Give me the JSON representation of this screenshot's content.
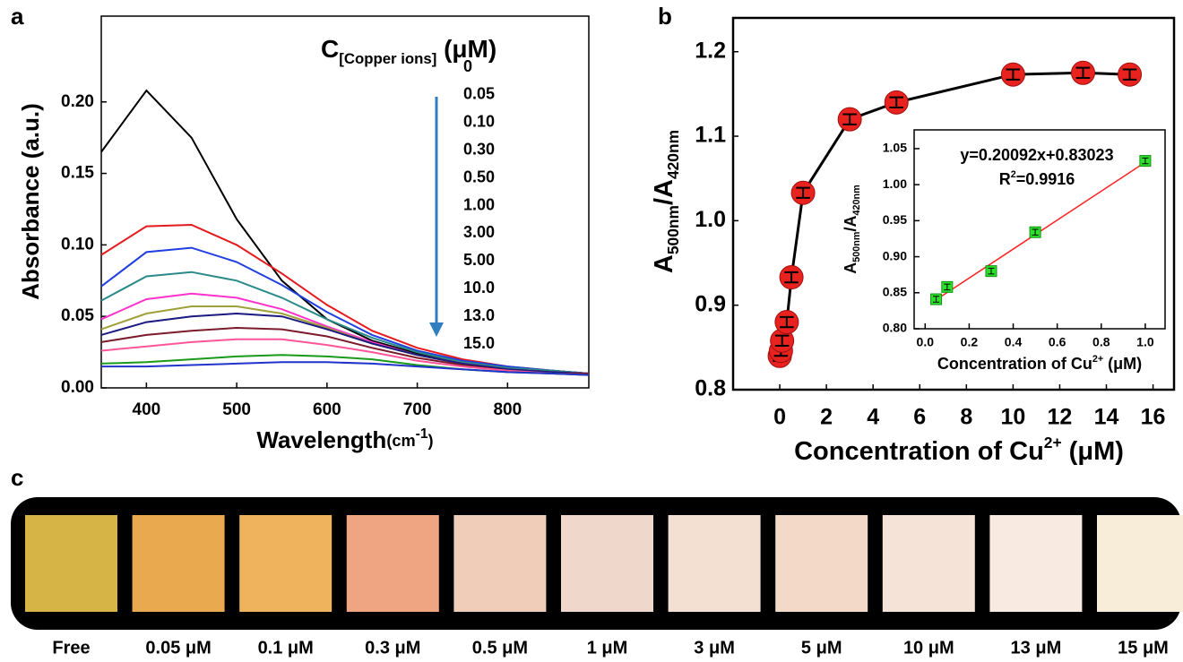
{
  "panel_labels": [
    "a",
    "b",
    "c"
  ],
  "chart_data": [
    {
      "type": "line",
      "x_label": [
        "Wavelength",
        "(cm",
        "-1",
        ")"
      ],
      "y_label": "Absorbance (a.u.)",
      "legend_title": [
        "C",
        "[Copper ions]",
        " (μM)"
      ],
      "legend_color": "#3a78b5",
      "x": [
        350,
        400,
        450,
        500,
        550,
        600,
        650,
        700,
        750,
        800,
        850,
        890
      ],
      "xlim": [
        350,
        890
      ],
      "xticks": [
        400,
        500,
        600,
        700,
        800
      ],
      "ylim": [
        0,
        0.26
      ],
      "yticks": [
        {
          "value": 0,
          "label": "0.00"
        },
        {
          "value": 0.05,
          "label": "0.05"
        },
        {
          "value": 0.1,
          "label": "0.10"
        },
        {
          "value": 0.15,
          "label": "0.15"
        },
        {
          "value": 0.2,
          "label": "0.20"
        }
      ],
      "series": [
        {
          "name": "0",
          "color": "#000000",
          "values": [
            0.165,
            0.208,
            0.175,
            0.118,
            0.075,
            0.048,
            0.033,
            0.024,
            0.018,
            0.014,
            0.012,
            0.01
          ]
        },
        {
          "name": "0.05",
          "color": "#e41a1c",
          "values": [
            0.093,
            0.113,
            0.114,
            0.1,
            0.08,
            0.058,
            0.04,
            0.028,
            0.02,
            0.015,
            0.012,
            0.01
          ]
        },
        {
          "name": "0.10",
          "color": "#1f3fe0",
          "values": [
            0.071,
            0.095,
            0.098,
            0.088,
            0.072,
            0.053,
            0.037,
            0.026,
            0.019,
            0.015,
            0.012,
            0.01
          ]
        },
        {
          "name": "0.30",
          "color": "#2a8a8a",
          "values": [
            0.061,
            0.078,
            0.081,
            0.075,
            0.063,
            0.048,
            0.035,
            0.025,
            0.018,
            0.014,
            0.012,
            0.01
          ]
        },
        {
          "name": "0.50",
          "color": "#ff33cc",
          "values": [
            0.048,
            0.062,
            0.066,
            0.063,
            0.055,
            0.043,
            0.032,
            0.023,
            0.017,
            0.013,
            0.011,
            0.01
          ]
        },
        {
          "name": "1.00",
          "color": "#a0a03a",
          "values": [
            0.041,
            0.052,
            0.057,
            0.057,
            0.052,
            0.042,
            0.031,
            0.023,
            0.017,
            0.013,
            0.011,
            0.01
          ]
        },
        {
          "name": "3.00",
          "color": "#1a1a80",
          "values": [
            0.037,
            0.046,
            0.05,
            0.052,
            0.05,
            0.041,
            0.031,
            0.023,
            0.017,
            0.013,
            0.011,
            0.01
          ]
        },
        {
          "name": "5.00",
          "color": "#7a1a2a",
          "values": [
            0.032,
            0.037,
            0.04,
            0.042,
            0.041,
            0.036,
            0.028,
            0.021,
            0.016,
            0.012,
            0.01,
            0.01
          ]
        },
        {
          "name": "10.0",
          "color": "#ff5599",
          "values": [
            0.026,
            0.029,
            0.032,
            0.034,
            0.034,
            0.03,
            0.025,
            0.019,
            0.015,
            0.012,
            0.01,
            0.009
          ]
        },
        {
          "name": "13.0",
          "color": "#1a9a1a",
          "values": [
            0.017,
            0.018,
            0.02,
            0.022,
            0.023,
            0.022,
            0.02,
            0.016,
            0.013,
            0.011,
            0.01,
            0.009
          ]
        },
        {
          "name": "15.0",
          "color": "#2233cc",
          "values": [
            0.015,
            0.015,
            0.016,
            0.017,
            0.018,
            0.018,
            0.017,
            0.015,
            0.013,
            0.011,
            0.01,
            0.009
          ]
        }
      ]
    },
    {
      "type": "scatter",
      "x_label": [
        "Concentration of Cu",
        "2+",
        " (μM)"
      ],
      "y_label": [
        "A",
        "500nm",
        "/A",
        "420nm"
      ],
      "x": [
        0,
        0.05,
        0.1,
        0.3,
        0.5,
        1,
        3,
        5,
        10,
        13,
        15
      ],
      "values": [
        0.84,
        0.846,
        0.858,
        0.88,
        0.933,
        1.033,
        1.12,
        1.14,
        1.173,
        1.175,
        1.173
      ],
      "errors": [
        0.006,
        0.006,
        0.006,
        0.006,
        0.006,
        0.006,
        0.006,
        0.006,
        0.006,
        0.006,
        0.006
      ],
      "color": "#e8231f",
      "line_color": "#000000",
      "xlim": [
        -2,
        16.9
      ],
      "xticks": [
        0,
        2,
        4,
        6,
        8,
        10,
        12,
        14,
        16
      ],
      "ylim": [
        0.8,
        1.24
      ],
      "yticks": [
        0.8,
        0.9,
        {
          "value": 1,
          "label": "1.0"
        },
        1.1,
        1.2
      ]
    },
    {
      "type": "scatter",
      "x_label": [
        "Concentration of Cu",
        "2+",
        " (μM)"
      ],
      "y_label": [
        "A",
        "500nm",
        "/A",
        "420nm"
      ],
      "equation": "y=0.20092x+0.83023",
      "fit_slope": 0.20092,
      "fit_intercept": 0.83023,
      "r2": [
        "R",
        "2",
        "=0.9916"
      ],
      "annotation_color": "#3a78b5",
      "x": [
        0.05,
        0.1,
        0.3,
        0.5,
        1
      ],
      "values": [
        0.841,
        0.858,
        0.88,
        0.934,
        1.033
      ],
      "errors": [
        0.004,
        0.004,
        0.004,
        0.004,
        0.004
      ],
      "color": "#2ee02e",
      "line_color": "#ff2020",
      "xlim": [
        -0.05,
        1.09
      ],
      "xticks": [
        {
          "value": 0,
          "label": "0.0"
        },
        0.2,
        0.4,
        0.6,
        0.8,
        {
          "value": 1,
          "label": "1.0"
        }
      ],
      "ylim": [
        0.8,
        1.076
      ],
      "yticks": [
        {
          "value": 0.8,
          "label": "0.80"
        },
        0.85,
        {
          "value": 0.9,
          "label": "0.90"
        },
        0.95,
        {
          "value": 1,
          "label": "1.00"
        },
        1.05
      ]
    }
  ],
  "strip": {
    "items": [
      {
        "label": "Free",
        "color": "#d6b446"
      },
      {
        "label": "0.05 μM",
        "color": "#e9a94f"
      },
      {
        "label": "0.1 μM",
        "color": "#eeb35c"
      },
      {
        "label": "0.3 μM",
        "color": "#efa581"
      },
      {
        "label": "0.5 μM",
        "color": "#efcdb8"
      },
      {
        "label": "1 μM",
        "color": "#f0d7cc"
      },
      {
        "label": "3 μM",
        "color": "#f4dfd3"
      },
      {
        "label": "5 μM",
        "color": "#f2d9c8"
      },
      {
        "label": "10 μM",
        "color": "#f6e3d8"
      },
      {
        "label": "13 μM",
        "color": "#f8e9e1"
      },
      {
        "label": "15 μM",
        "color": "#f7edd9"
      }
    ]
  }
}
